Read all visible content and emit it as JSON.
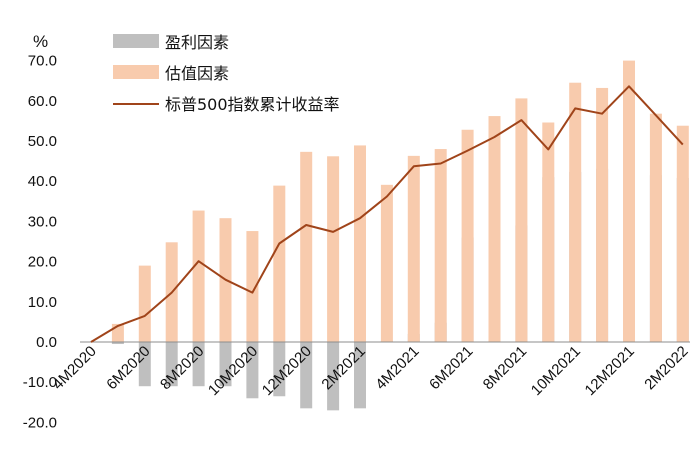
{
  "chart_data": {
    "type": "bar",
    "unit_label": "%",
    "categories": [
      "4M2020",
      "5M2020",
      "6M2020",
      "7M2020",
      "8M2020",
      "9M2020",
      "10M2020",
      "11M2020",
      "12M2020",
      "1M2021",
      "2M2021",
      "3M2021",
      "4M2021",
      "5M2021",
      "6M2021",
      "7M2021",
      "8M2021",
      "9M2021",
      "10M2021",
      "11M2021",
      "12M2021",
      "1M2022",
      "2M2022",
      "3M2022"
    ],
    "x_tick_labels": [
      "4M2020",
      "6M2020",
      "8M2020",
      "10M2020",
      "12M2020",
      "2M2021",
      "4M2021",
      "6M2021",
      "8M2021",
      "10M2021",
      "12M2021",
      "2M2022"
    ],
    "ylim": [
      -20,
      70
    ],
    "yticks": [
      "-20.0",
      "-10.0",
      "0.0",
      "10.0",
      "20.0",
      "30.0",
      "40.0",
      "50.0",
      "60.0",
      "70.0"
    ],
    "series": [
      {
        "name": "盈利因素",
        "kind": "bar",
        "color": "#bfbfbf",
        "values": [
          0,
          -0.5,
          -11,
          -11,
          -11,
          -11,
          -14,
          -13.5,
          -16.5,
          -17,
          -16.5,
          0.3,
          2,
          4.8,
          26,
          27.6,
          29,
          41,
          42.3,
          43.1,
          42.5,
          41.5,
          40.8,
          null
        ]
      },
      {
        "name": "估值因素",
        "kind": "bar",
        "color": "#f8cbad",
        "values": [
          0,
          4.5,
          19,
          24.8,
          32.7,
          30.8,
          27.6,
          38.9,
          47.3,
          46.2,
          48.9,
          39.1,
          46.3,
          48,
          52.8,
          56.2,
          60.6,
          54.6,
          64.5,
          63.2,
          70,
          56.8,
          53.8,
          null
        ]
      },
      {
        "name": "标普500指数累计收益率",
        "kind": "line",
        "color": "#a0441a",
        "values": [
          0,
          4,
          6.5,
          12.3,
          20.1,
          15.5,
          12.3,
          24.5,
          29.1,
          27.4,
          30.8,
          36.2,
          43.7,
          44.4,
          47.6,
          51,
          55.2,
          47.9,
          58.1,
          56.8,
          63.6,
          56.4,
          49.1,
          null
        ]
      }
    ],
    "legend_position": "top-left",
    "grid": false
  }
}
